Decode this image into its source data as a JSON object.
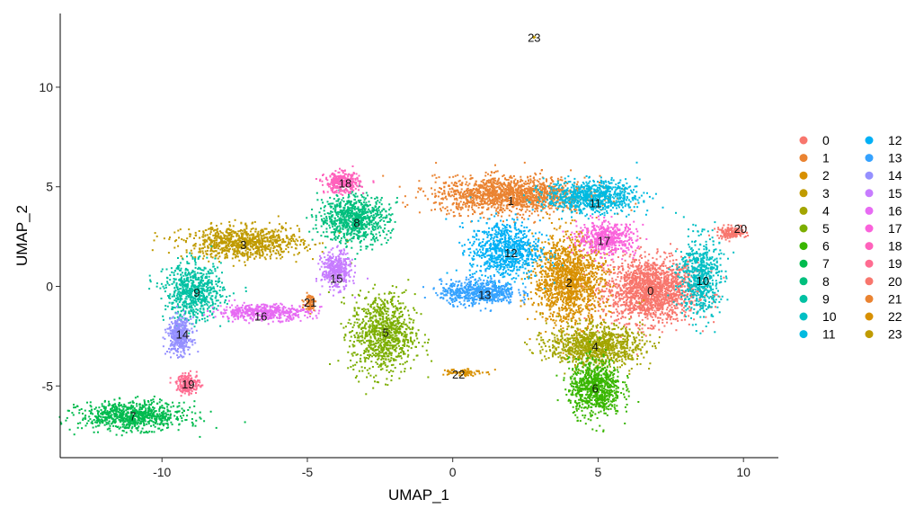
{
  "chart_data": {
    "type": "scatter",
    "xlabel": "UMAP_1",
    "ylabel": "UMAP_2",
    "xlim": [
      -13.5,
      11.2
    ],
    "ylim": [
      -8.6,
      13.7
    ],
    "xticks": [
      -10,
      -5,
      0,
      5,
      10
    ],
    "yticks": [
      -5,
      0,
      5,
      10
    ],
    "grid": false,
    "legend_position": "right",
    "legend_columns": 2,
    "clusters": [
      {
        "id": "0",
        "color": "#F8766D",
        "label_pos": [
          6.8,
          -0.2
        ],
        "blobs": [
          [
            6.8,
            -0.2,
            1.6,
            1.6,
            1700
          ]
        ]
      },
      {
        "id": "1",
        "color": "#EA8331",
        "label_pos": [
          2.0,
          4.3
        ],
        "blobs": [
          [
            2.0,
            4.6,
            2.6,
            0.9,
            1500
          ]
        ]
      },
      {
        "id": "2",
        "color": "#D89000",
        "label_pos": [
          4.0,
          0.2
        ],
        "blobs": [
          [
            4.0,
            0.3,
            1.2,
            2.2,
            1400
          ]
        ]
      },
      {
        "id": "3",
        "color": "#C09B00",
        "label_pos": [
          -7.2,
          2.1
        ],
        "blobs": [
          [
            -7.2,
            2.2,
            2.0,
            0.8,
            900
          ]
        ]
      },
      {
        "id": "4",
        "color": "#A3A500",
        "label_pos": [
          4.9,
          -3.0
        ],
        "blobs": [
          [
            4.9,
            -3.0,
            1.6,
            1.0,
            1000
          ]
        ]
      },
      {
        "id": "5",
        "color": "#7CAE00",
        "label_pos": [
          -2.3,
          -2.3
        ],
        "blobs": [
          [
            -2.4,
            -2.4,
            1.1,
            2.0,
            900
          ]
        ]
      },
      {
        "id": "6",
        "color": "#39B600",
        "label_pos": [
          4.9,
          -5.1
        ],
        "blobs": [
          [
            4.9,
            -5.1,
            0.9,
            1.4,
            800
          ]
        ]
      },
      {
        "id": "7",
        "color": "#00BB4E",
        "label_pos": [
          -11.0,
          -6.5
        ],
        "blobs": [
          [
            -11.0,
            -6.5,
            1.8,
            0.7,
            800
          ]
        ]
      },
      {
        "id": "8",
        "color": "#00BF7D",
        "label_pos": [
          -3.3,
          3.2
        ],
        "blobs": [
          [
            -3.4,
            3.4,
            1.2,
            1.2,
            800
          ]
        ]
      },
      {
        "id": "9",
        "color": "#00C1A3",
        "label_pos": [
          -8.8,
          -0.3
        ],
        "blobs": [
          [
            -8.9,
            -0.3,
            1.0,
            1.4,
            700
          ]
        ]
      },
      {
        "id": "10",
        "color": "#00BFC4",
        "label_pos": [
          8.6,
          0.3
        ],
        "blobs": [
          [
            8.5,
            0.5,
            0.7,
            2.0,
            600
          ]
        ]
      },
      {
        "id": "11",
        "color": "#00BAE0",
        "label_pos": [
          4.9,
          4.2
        ],
        "blobs": [
          [
            4.8,
            4.5,
            1.6,
            0.8,
            800
          ]
        ]
      },
      {
        "id": "12",
        "color": "#00B0F6",
        "label_pos": [
          2.0,
          1.7
        ],
        "blobs": [
          [
            1.8,
            1.8,
            1.2,
            1.5,
            800
          ]
        ]
      },
      {
        "id": "13",
        "color": "#35A2FF",
        "label_pos": [
          1.1,
          -0.4
        ],
        "blobs": [
          [
            0.9,
            -0.3,
            1.3,
            0.6,
            600
          ]
        ]
      },
      {
        "id": "14",
        "color": "#9590FF",
        "label_pos": [
          -9.3,
          -2.4
        ],
        "blobs": [
          [
            -9.4,
            -2.5,
            0.4,
            0.9,
            400
          ]
        ]
      },
      {
        "id": "15",
        "color": "#C77CFF",
        "label_pos": [
          -4.0,
          0.4
        ],
        "blobs": [
          [
            -4.0,
            0.8,
            0.5,
            0.9,
            400
          ]
        ]
      },
      {
        "id": "16",
        "color": "#E76BF3",
        "label_pos": [
          -6.6,
          -1.5
        ],
        "blobs": [
          [
            -6.5,
            -1.3,
            1.6,
            0.4,
            500
          ]
        ]
      },
      {
        "id": "17",
        "color": "#FA62DB",
        "label_pos": [
          5.2,
          2.3
        ],
        "blobs": [
          [
            5.3,
            2.4,
            1.0,
            0.8,
            500
          ]
        ]
      },
      {
        "id": "18",
        "color": "#FF62BC",
        "label_pos": [
          -3.7,
          5.2
        ],
        "blobs": [
          [
            -3.8,
            5.2,
            0.6,
            0.5,
            350
          ]
        ]
      },
      {
        "id": "19",
        "color": "#FF6C91",
        "label_pos": [
          -9.1,
          -4.9
        ],
        "blobs": [
          [
            -9.1,
            -4.9,
            0.4,
            0.5,
            200
          ]
        ]
      },
      {
        "id": "20",
        "color": "#F8766D",
        "label_pos": [
          9.9,
          2.9
        ],
        "blobs": [
          [
            9.6,
            2.7,
            0.5,
            0.3,
            150
          ]
        ]
      },
      {
        "id": "21",
        "color": "#EA8331",
        "label_pos": [
          -4.9,
          -0.8
        ],
        "blobs": [
          [
            -4.9,
            -0.8,
            0.2,
            0.4,
            80
          ]
        ]
      },
      {
        "id": "22",
        "color": "#D89000",
        "label_pos": [
          0.2,
          -4.4
        ],
        "blobs": [
          [
            0.3,
            -4.3,
            0.7,
            0.2,
            80
          ]
        ]
      },
      {
        "id": "23",
        "color": "#C09B00",
        "label_pos": [
          2.8,
          12.5
        ],
        "blobs": [
          [
            2.8,
            12.5,
            0.05,
            0.05,
            6
          ]
        ]
      }
    ],
    "legend_entries": [
      {
        "id": "0",
        "color": "#F8766D"
      },
      {
        "id": "1",
        "color": "#EA8331"
      },
      {
        "id": "2",
        "color": "#D89000"
      },
      {
        "id": "3",
        "color": "#C09B00"
      },
      {
        "id": "4",
        "color": "#A3A500"
      },
      {
        "id": "5",
        "color": "#7CAE00"
      },
      {
        "id": "6",
        "color": "#39B600"
      },
      {
        "id": "7",
        "color": "#00BB4E"
      },
      {
        "id": "8",
        "color": "#00BF7D"
      },
      {
        "id": "9",
        "color": "#00C1A3"
      },
      {
        "id": "10",
        "color": "#00BFC4"
      },
      {
        "id": "11",
        "color": "#00BAE0"
      },
      {
        "id": "12",
        "color": "#00B0F6"
      },
      {
        "id": "13",
        "color": "#35A2FF"
      },
      {
        "id": "14",
        "color": "#9590FF"
      },
      {
        "id": "15",
        "color": "#C77CFF"
      },
      {
        "id": "16",
        "color": "#E76BF3"
      },
      {
        "id": "17",
        "color": "#FA62DB"
      },
      {
        "id": "18",
        "color": "#FF62BC"
      },
      {
        "id": "19",
        "color": "#FF6C91"
      },
      {
        "id": "20",
        "color": "#F8766D"
      },
      {
        "id": "21",
        "color": "#EA8331"
      },
      {
        "id": "22",
        "color": "#D89000"
      },
      {
        "id": "23",
        "color": "#C09B00"
      }
    ]
  }
}
